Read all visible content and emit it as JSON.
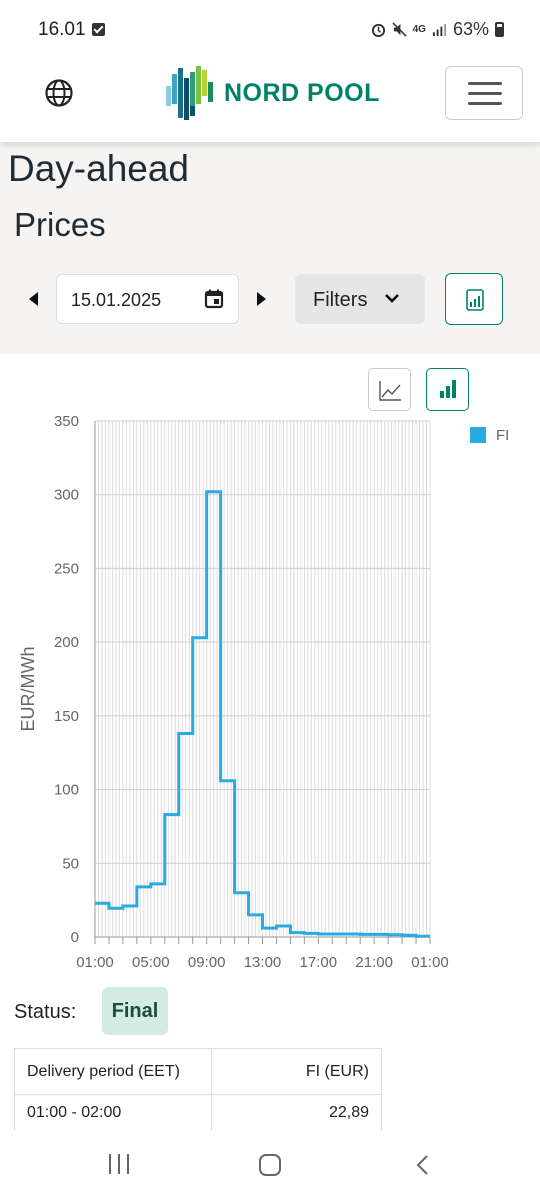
{
  "status_bar": {
    "time": "16.01",
    "network": "4G",
    "battery": "63%"
  },
  "header": {
    "logo_text": "NORD POOL",
    "globe_icon": "globe-icon",
    "menu_icon": "hamburger-menu-icon"
  },
  "page": {
    "title": "Day-ahead",
    "subtitle": "Prices"
  },
  "controls": {
    "date": "15.01.2025",
    "filters_label": "Filters",
    "prev_icon": "caret-left-icon",
    "next_icon": "caret-right-icon",
    "calendar_icon": "calendar-icon",
    "download_icon": "chart-download-icon"
  },
  "chart_toggles": {
    "line_icon": "line-chart-icon",
    "bar_icon": "bar-chart-icon",
    "active": "bar"
  },
  "chart_data": {
    "type": "line",
    "step": true,
    "ylabel": "EUR/MWh",
    "ylim": [
      0,
      350
    ],
    "yticks": [
      0,
      50,
      100,
      150,
      200,
      250,
      300,
      350
    ],
    "xticks": [
      "01:00",
      "05:00",
      "09:00",
      "13:00",
      "17:00",
      "21:00",
      "01:00"
    ],
    "hours": [
      "01:00",
      "02:00",
      "03:00",
      "04:00",
      "05:00",
      "06:00",
      "07:00",
      "08:00",
      "09:00",
      "10:00",
      "11:00",
      "12:00",
      "13:00",
      "14:00",
      "15:00",
      "16:00",
      "17:00",
      "18:00",
      "19:00",
      "20:00",
      "21:00",
      "22:00",
      "23:00",
      "00:00"
    ],
    "legend_position": "top-right",
    "grid": true,
    "series": [
      {
        "name": "FI",
        "color": "#29abe2",
        "values": [
          22.89,
          19.5,
          21,
          34,
          36,
          83,
          138,
          203,
          302,
          106,
          30,
          15,
          6,
          7.5,
          3,
          2.5,
          2,
          2,
          2,
          1.8,
          1.8,
          1.5,
          1.2,
          0.5
        ]
      }
    ]
  },
  "status": {
    "label": "Status:",
    "value": "Final"
  },
  "table": {
    "headers": [
      "Delivery period (EET)",
      "FI (EUR)"
    ],
    "rows": [
      [
        "01:00 - 02:00",
        "22,89"
      ]
    ]
  },
  "nav": {
    "recent_icon": "recent-apps-icon",
    "home_icon": "home-icon",
    "back_icon": "back-icon"
  }
}
